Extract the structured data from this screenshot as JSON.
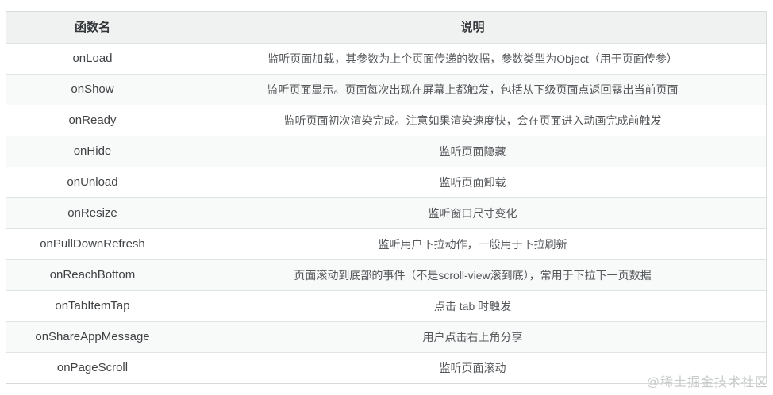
{
  "table": {
    "headers": {
      "name": "函数名",
      "desc": "说明"
    },
    "rows": [
      {
        "name": "onLoad",
        "desc": "监听页面加载，其参数为上个页面传递的数据，参数类型为Object（用于页面传参）"
      },
      {
        "name": "onShow",
        "desc": "监听页面显示。页面每次出现在屏幕上都触发，包括从下级页面点返回露出当前页面"
      },
      {
        "name": "onReady",
        "desc": "监听页面初次渲染完成。注意如果渲染速度快，会在页面进入动画完成前触发"
      },
      {
        "name": "onHide",
        "desc": "监听页面隐藏"
      },
      {
        "name": "onUnload",
        "desc": "监听页面卸载"
      },
      {
        "name": "onResize",
        "desc": "监听窗口尺寸变化"
      },
      {
        "name": "onPullDownRefresh",
        "desc": "监听用户下拉动作，一般用于下拉刷新"
      },
      {
        "name": "onReachBottom",
        "desc": "页面滚动到底部的事件（不是scroll-view滚到底），常用于下拉下一页数据"
      },
      {
        "name": "onTabItemTap",
        "desc": "点击 tab 时触发"
      },
      {
        "name": "onShareAppMessage",
        "desc": "用户点击右上角分享"
      },
      {
        "name": "onPageScroll",
        "desc": "监听页面滚动"
      }
    ]
  },
  "watermark": "@稀土掘金技术社区",
  "colors": {
    "header_bg": "#f0f2f2",
    "alt_row_bg": "#f8f9f9",
    "border": "#dcdfdf",
    "header_text": "#333639",
    "body_text": "#54585b",
    "watermark_text": "#c7caca"
  }
}
